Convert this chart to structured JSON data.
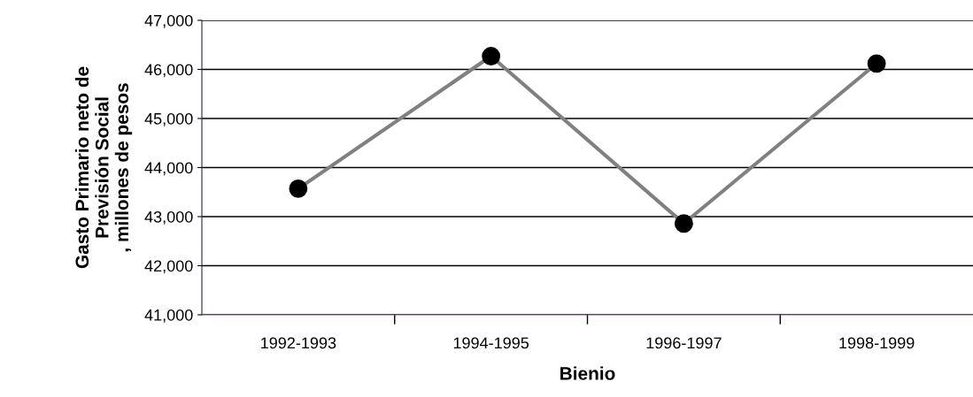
{
  "chart_data": {
    "type": "line",
    "xlabel": "Bienio",
    "ylabel": "Gasto Primario neto de\nPrevisión Social\n, millones de pesos",
    "categories": [
      "1992-1993",
      "1994-1995",
      "1996-1997",
      "1998-1999"
    ],
    "series": [
      {
        "color": "#808080",
        "values": [
          43570,
          46270,
          42860,
          46120
        ]
      }
    ],
    "marker": "circle",
    "line_style": "solid",
    "grid": "y",
    "ylim": [
      41000,
      47000
    ],
    "yticks": [
      {
        "value": 41000,
        "label": "41,000"
      },
      {
        "value": 42000,
        "label": "42,000"
      },
      {
        "value": 43000,
        "label": "43,000"
      },
      {
        "value": 44000,
        "label": "44,000"
      },
      {
        "value": 45000,
        "label": "45,000"
      },
      {
        "value": 46000,
        "label": "46,000"
      },
      {
        "value": 47000,
        "label": "47,000"
      }
    ]
  }
}
